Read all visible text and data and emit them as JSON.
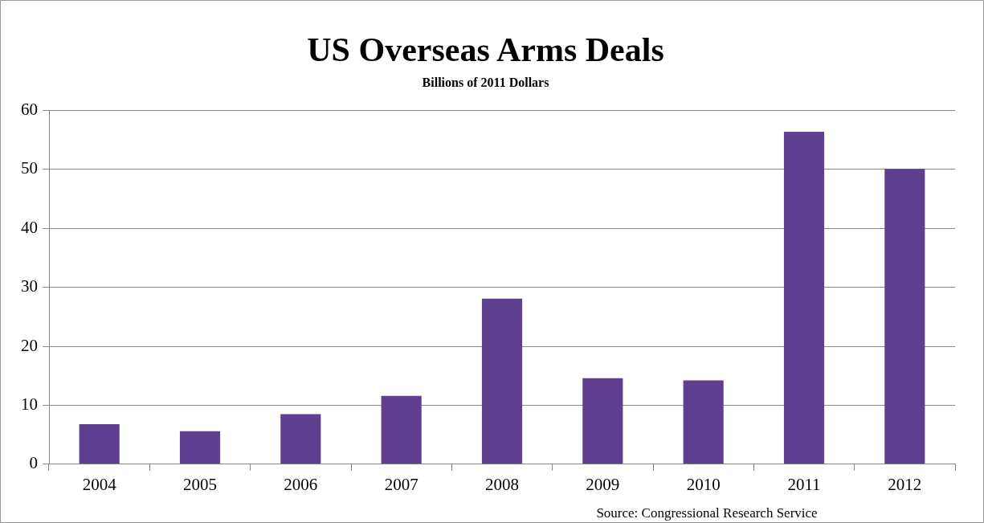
{
  "chart_data": {
    "type": "bar",
    "title": "US Overseas Arms Deals",
    "subtitle": "Billions of 2011 Dollars",
    "categories": [
      "2004",
      "2005",
      "2006",
      "2007",
      "2008",
      "2009",
      "2010",
      "2011",
      "2012"
    ],
    "values": [
      6.8,
      5.6,
      8.5,
      11.6,
      28.1,
      14.6,
      14.2,
      56.4,
      50.1
    ],
    "color": "#5f3f8f",
    "ylim": [
      0,
      60
    ],
    "yticks": [
      0,
      10,
      20,
      30,
      40,
      50,
      60
    ],
    "grid": "y",
    "annotations": [
      "Source: Congressional Research Service"
    ]
  }
}
